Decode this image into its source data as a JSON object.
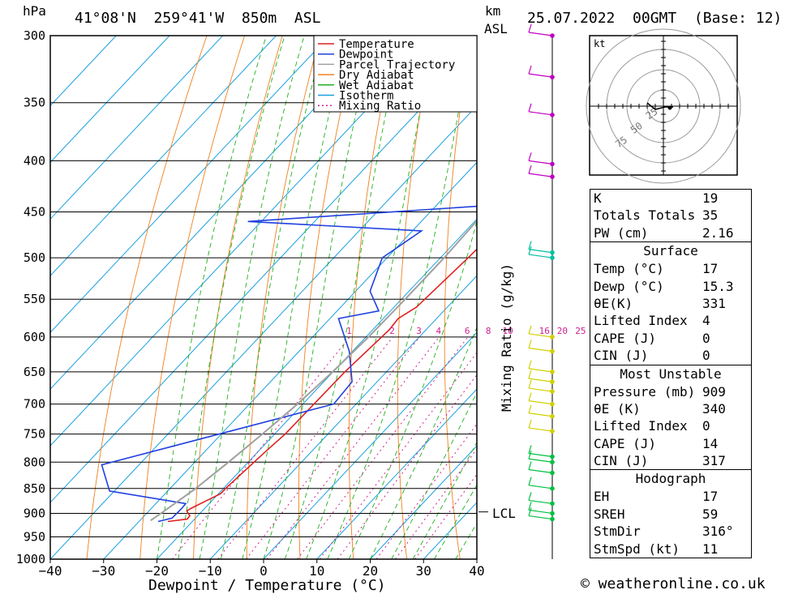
{
  "header": {
    "location": "41°08'N  259°41'W  850m  ASL",
    "datetime": "25.07.2022  00GMT  (Base: 12)",
    "hpa_label": "hPa",
    "km_label": "km",
    "asl_label": "ASL",
    "kt_label": "kt"
  },
  "chart_data": {
    "type": "line",
    "title": "41°08'N  259°41'W  850m  ASL",
    "xlabel": "Dewpoint / Temperature (°C)",
    "ylabel": "hPa",
    "right_label": "Mixing Ratio (g/kg)",
    "xlim": [
      -40,
      40
    ],
    "ylim": [
      1000,
      300
    ],
    "x_ticks": [
      -40,
      -30,
      -20,
      -10,
      0,
      10,
      20,
      30,
      40
    ],
    "x_tick_labels": [
      "−40",
      "−30",
      "−20",
      "−10",
      "0",
      "10",
      "20",
      "30",
      "40"
    ],
    "p_levels": [
      300,
      350,
      400,
      450,
      500,
      550,
      600,
      650,
      700,
      750,
      800,
      850,
      900,
      950,
      1000
    ],
    "skew": true,
    "legend": [
      "Temperature",
      "Dewpoint",
      "Parcel Trajectory",
      "Dry Adiabat",
      "Wet Adiabat",
      "Isotherm",
      "Mixing Ratio"
    ],
    "legend_position": "top-right",
    "lcl_label": "LCL",
    "lcl_pressure": 897,
    "mixing_ratio_labels": [
      "1",
      "2",
      "3",
      "4",
      "6",
      "8",
      "10",
      "16",
      "20",
      "25"
    ],
    "series": [
      {
        "name": "Temperature",
        "color": "#e02020",
        "points": [
          [
            917,
            20.4
          ],
          [
            912,
            23.6
          ],
          [
            905,
            23.5
          ],
          [
            895,
            22.1
          ],
          [
            890,
            22.4
          ],
          [
            860,
            25.4
          ],
          [
            850,
            25.4
          ],
          [
            780,
            26.4
          ],
          [
            750,
            27.0
          ],
          [
            650,
            27.2
          ],
          [
            590,
            28.1
          ],
          [
            575,
            27.8
          ],
          [
            560,
            29.2
          ],
          [
            500,
            30.2
          ],
          [
            475,
            30.5
          ],
          [
            460,
            32.5
          ],
          [
            430,
            33.5
          ],
          [
            405,
            33.5
          ],
          [
            375,
            32.5
          ],
          [
            358,
            32.7
          ],
          [
            340,
            35.0
          ],
          [
            330,
            35.5
          ],
          [
            300,
            37.8
          ]
        ]
      },
      {
        "name": "Dewpoint",
        "color": "#2040e0",
        "points": [
          [
            917,
            18.6
          ],
          [
            910,
            20.6
          ],
          [
            890,
            20.7
          ],
          [
            880,
            20.6
          ],
          [
            855,
            4.1
          ],
          [
            805,
            -2.0
          ],
          [
            700,
            30.8
          ],
          [
            665,
            30.3
          ],
          [
            620,
            24.4
          ],
          [
            575,
            16.6
          ],
          [
            565,
            22.8
          ],
          [
            540,
            17.7
          ],
          [
            500,
            14.1
          ],
          [
            470,
            16.7
          ],
          [
            460,
            -17.5
          ],
          [
            440,
            33.6
          ],
          [
            425,
            30.0
          ],
          [
            400,
            23.4
          ],
          [
            375,
            20.9
          ],
          [
            355,
            19.2
          ],
          [
            335,
            16.5
          ],
          [
            310,
            16.3
          ],
          [
            300,
            20.8
          ]
        ]
      },
      {
        "name": "Parcel Trajectory",
        "color": "#a0a0a0",
        "points": [
          [
            915,
            17.0
          ],
          [
            897,
            17.8
          ],
          [
            850,
            19.8
          ],
          [
            800,
            21.3
          ],
          [
            750,
            22.7
          ],
          [
            700,
            24.0
          ],
          [
            650,
            24.9
          ],
          [
            600,
            25.5
          ],
          [
            550,
            25.7
          ],
          [
            500,
            25.7
          ],
          [
            450,
            25.2
          ],
          [
            400,
            24.1
          ],
          [
            350,
            22.0
          ],
          [
            300,
            19.0
          ]
        ]
      }
    ]
  },
  "altitude_marks": [
    {
      "p": 300,
      "label": ""
    },
    {
      "p": 330,
      "label": ""
    },
    {
      "p": 360,
      "label": ""
    },
    {
      "p": 403,
      "label": ""
    },
    {
      "p": 415,
      "label": ""
    },
    {
      "p": 494,
      "label": ""
    },
    {
      "p": 500,
      "label": ""
    }
  ],
  "wind_colors": {
    "upper": "#c000c0",
    "mid": "#00c0a0",
    "low_yellow": "#d0d000",
    "low": "#00c040"
  },
  "hodograph": {
    "rings": [
      "25",
      "50",
      "75"
    ],
    "label": "kt"
  },
  "indices": [
    {
      "label": "K",
      "value": "19"
    },
    {
      "label": "Totals Totals",
      "value": "35"
    },
    {
      "label": "PW (cm)",
      "value": "2.16"
    }
  ],
  "surface": {
    "title": "Surface",
    "rows": [
      {
        "label": "Temp (°C)",
        "value": "17"
      },
      {
        "label": "Dewp (°C)",
        "value": "15.3"
      },
      {
        "label": "θE(K)",
        "value": "331"
      },
      {
        "label": "Lifted Index",
        "value": "4"
      },
      {
        "label": "CAPE (J)",
        "value": "0"
      },
      {
        "label": "CIN (J)",
        "value": "0"
      }
    ]
  },
  "most_unstable": {
    "title": "Most Unstable",
    "rows": [
      {
        "label": "Pressure (mb)",
        "value": "909"
      },
      {
        "label": "θE (K)",
        "value": "340"
      },
      {
        "label": "Lifted Index",
        "value": "0"
      },
      {
        "label": "CAPE (J)",
        "value": "14"
      },
      {
        "label": "CIN (J)",
        "value": "317"
      }
    ]
  },
  "hodograph_table": {
    "title": "Hodograph",
    "rows": [
      {
        "label": "EH",
        "value": "17"
      },
      {
        "label": "SREH",
        "value": "59"
      },
      {
        "label": "StmDir",
        "value": "316°"
      },
      {
        "label": "StmSpd (kt)",
        "value": "11"
      }
    ]
  },
  "footer": {
    "copyright": "© weatheronline.co.uk"
  }
}
